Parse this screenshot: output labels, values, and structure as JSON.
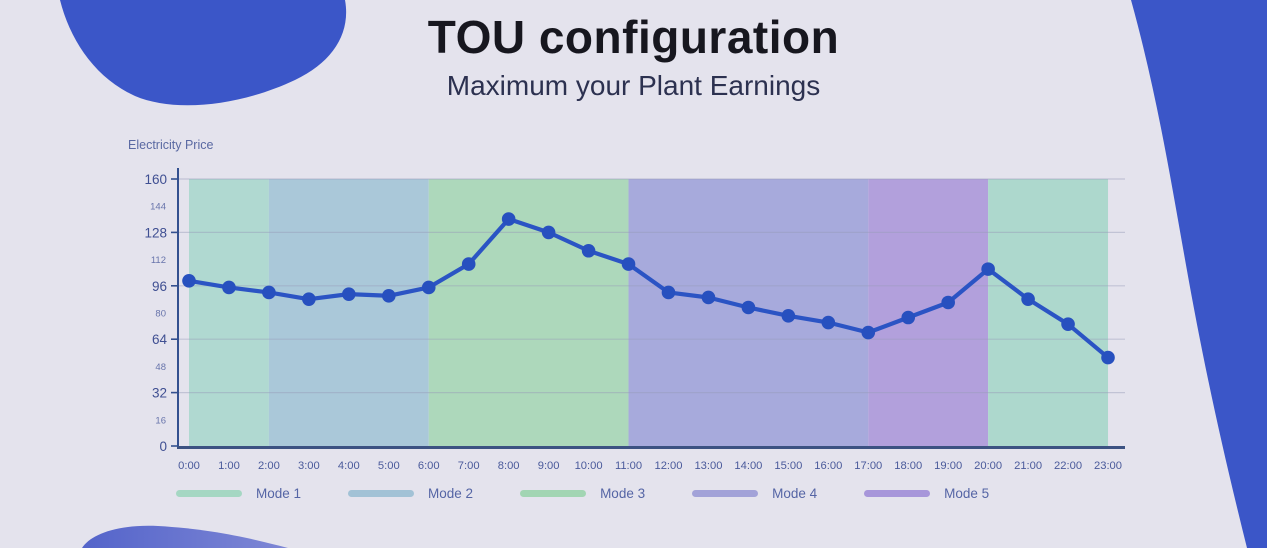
{
  "page": {
    "title": "TOU configuration",
    "subtitle": "Maximum your Plant Earnings"
  },
  "chart_data": {
    "type": "line",
    "ylabel": "Electricity Price",
    "xlabel": "",
    "categories": [
      "0:00",
      "1:00",
      "2:00",
      "3:00",
      "4:00",
      "5:00",
      "6:00",
      "7:00",
      "8:00",
      "9:00",
      "10:00",
      "11:00",
      "12:00",
      "13:00",
      "14:00",
      "15:00",
      "16:00",
      "17:00",
      "18:00",
      "19:00",
      "20:00",
      "21:00",
      "22:00",
      "23:00"
    ],
    "values": [
      99,
      95,
      92,
      88,
      91,
      90,
      95,
      109,
      136,
      128,
      117,
      109,
      92,
      89,
      83,
      78,
      74,
      68,
      77,
      86,
      106,
      88,
      73,
      53
    ],
    "ylim": [
      0,
      160
    ],
    "y_major_ticks": [
      0,
      32,
      64,
      96,
      128,
      160
    ],
    "y_minor_ticks": [
      16,
      48,
      80,
      112,
      144
    ],
    "grid": "horizontal gridlines at major y ticks only",
    "line_color": "#2b54c4",
    "point_color": "#2750bf",
    "bands": [
      {
        "mode": "Mode 1",
        "from_hour": 0,
        "to_hour": 2,
        "color": "#b0d9d1"
      },
      {
        "mode": "Mode 2",
        "from_hour": 2,
        "to_hour": 6,
        "color": "#aac8d9"
      },
      {
        "mode": "Mode 3",
        "from_hour": 6,
        "to_hour": 11,
        "color": "#add8bb"
      },
      {
        "mode": "Mode 4",
        "from_hour": 11,
        "to_hour": 17,
        "color": "#a7aadc"
      },
      {
        "mode": "Mode 5",
        "from_hour": 17,
        "to_hour": 20,
        "color": "#b2a0dc"
      },
      {
        "mode": "Mode 1",
        "from_hour": 20,
        "to_hour": 23,
        "color": "#add8cd"
      }
    ],
    "legend": [
      {
        "label": "Mode 1",
        "color": "#a5d7c3"
      },
      {
        "label": "Mode 2",
        "color": "#a2c2d6"
      },
      {
        "label": "Mode 3",
        "color": "#a2d5b3"
      },
      {
        "label": "Mode 4",
        "color": "#a2a2d8"
      },
      {
        "label": "Mode 5",
        "color": "#a796da"
      }
    ],
    "legend_position": "bottom"
  },
  "colors": {
    "background": "#e4e3ed",
    "decor_blob": "#3b56c8",
    "decor_blob_light_start": "#5464ca",
    "decor_blob_light_end": "#7e87d5",
    "axis_line": "#33508f",
    "x_axis_line": "#3c5282",
    "major_tick_label": "#3f4f92",
    "minor_tick_label": "#5a68a4",
    "x_tick_label": "#4a5a9b",
    "gridline": "rgba(150,155,185,0.45)"
  }
}
